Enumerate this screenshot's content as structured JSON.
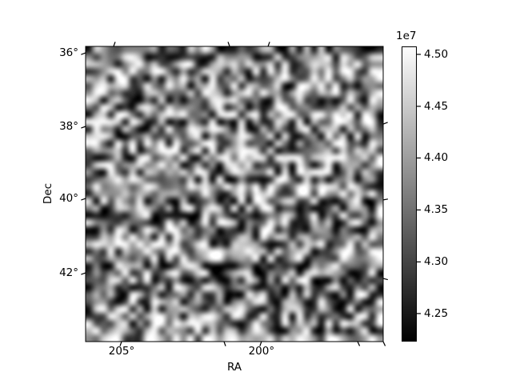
{
  "figure": {
    "background": "#ffffff",
    "frame_color": "#000000",
    "text_color": "#000000"
  },
  "chart_data": {
    "type": "heatmap",
    "title": "",
    "xlabel": "RA",
    "ylabel": "Dec",
    "x_axis": {
      "ticks": [
        {
          "label": "205°",
          "pos": 0.121,
          "tilt": 20
        },
        {
          "label": "200°",
          "pos": 0.591,
          "tilt": 20
        }
      ],
      "range_deg_approx": [
        206.3,
        195.7
      ],
      "direction": "RA decreases to the right"
    },
    "y_axis": {
      "ticks": [
        {
          "label": "36°",
          "pos": 0.022,
          "tilt": -20
        },
        {
          "label": "38°",
          "pos": 0.271,
          "tilt": -20
        },
        {
          "label": "40°",
          "pos": 0.515,
          "tilt": -20
        },
        {
          "label": "42°",
          "pos": 0.767,
          "tilt": -20
        }
      ],
      "range_deg_approx": [
        35.8,
        43.9
      ],
      "direction": "Dec increases downward"
    },
    "extra_wcs_ticks": {
      "top": [
        {
          "pos": 0.094,
          "tilt": 20
        },
        {
          "pos": 0.484,
          "tilt": -20
        },
        {
          "pos": 0.613,
          "tilt": 20
        }
      ],
      "bottom_unlabeled": [
        {
          "pos": 0.465,
          "tilt": -20
        },
        {
          "pos": 0.914,
          "tilt": -25
        },
        {
          "pos": 1.0,
          "tilt": -25
        }
      ],
      "right": [
        {
          "pos": 0.263,
          "tilt": -20
        },
        {
          "pos": 0.52,
          "tilt": -10
        },
        {
          "pos": 0.786,
          "tilt": 15
        }
      ]
    },
    "colorbar": {
      "offset_label": "1e7",
      "ticks": [
        {
          "label": "4.50",
          "pos": 0.027
        },
        {
          "label": "4.45",
          "pos": 0.203
        },
        {
          "label": "4.40",
          "pos": 0.378
        },
        {
          "label": "4.35",
          "pos": 0.554
        },
        {
          "label": "4.30",
          "pos": 0.73
        },
        {
          "label": "4.25",
          "pos": 0.905
        }
      ],
      "cmap": "gray",
      "gradient_top": "#fdfdfd",
      "gradient_bottom": "#000000",
      "vmin_approx": 42220000,
      "vmax_approx": 45080000
    },
    "heatmap": {
      "grid_rows": 41,
      "grid_cols": 41,
      "seed": 1337,
      "interpolation": "bilinear",
      "value_range_approx": [
        42220000,
        45080000
      ],
      "description": "smoothed grayscale random intensity field with faint horizontal row striping"
    },
    "legend": null,
    "grid": false
  }
}
